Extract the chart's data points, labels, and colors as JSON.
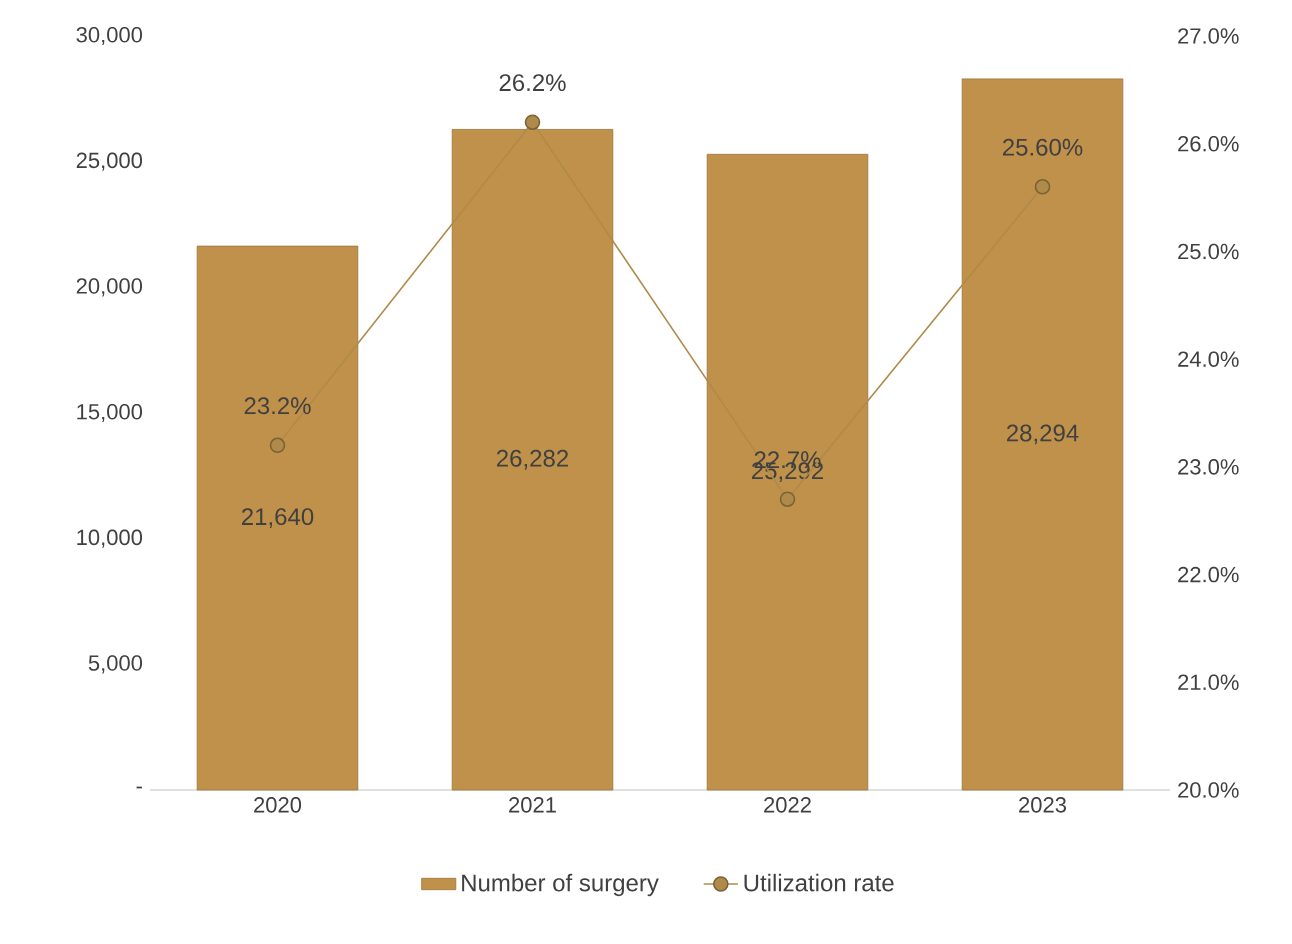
{
  "chart_data": {
    "type": "bar",
    "categories": [
      "2020",
      "2021",
      "2022",
      "2023"
    ],
    "series": [
      {
        "name": "Number of surgery",
        "color": "#c0914a",
        "values": [
          21640,
          26282,
          25292,
          28294
        ],
        "value_labels": [
          "21,640",
          "26,282",
          "25,292",
          "28,294"
        ]
      },
      {
        "name": "Utilization rate",
        "type": "line",
        "axis": "y2",
        "color": "#b08a4a",
        "marker": "circle",
        "values": [
          23.2,
          26.2,
          22.7,
          25.6
        ],
        "value_labels": [
          "23.2%",
          "26.2%",
          "22.7%",
          "25.60%"
        ]
      }
    ],
    "ylim": [
      0,
      30000
    ],
    "yticks": [
      {
        "value": 0,
        "label": "-"
      },
      {
        "value": 5000,
        "label": "5,000"
      },
      {
        "value": 10000,
        "label": "10,000"
      },
      {
        "value": 15000,
        "label": "15,000"
      },
      {
        "value": 20000,
        "label": "20,000"
      },
      {
        "value": 25000,
        "label": "25,000"
      },
      {
        "value": 30000,
        "label": "30,000"
      }
    ],
    "y2lim": [
      20,
      27
    ],
    "y2ticks": [
      {
        "value": 20,
        "label": "20.0%"
      },
      {
        "value": 21,
        "label": "21.0%"
      },
      {
        "value": 22,
        "label": "22.0%"
      },
      {
        "value": 23,
        "label": "23.0%"
      },
      {
        "value": 24,
        "label": "24.0%"
      },
      {
        "value": 25,
        "label": "25.0%"
      },
      {
        "value": 26,
        "label": "26.0%"
      },
      {
        "value": 27,
        "label": "27.0%"
      }
    ],
    "legend": "bottom",
    "grid": false
  }
}
